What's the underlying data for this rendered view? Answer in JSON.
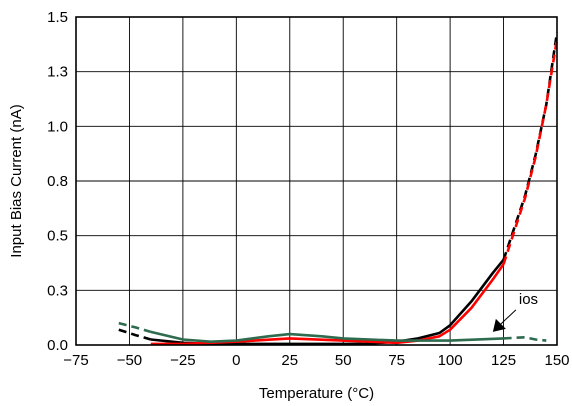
{
  "chart_data": {
    "type": "line",
    "title": "",
    "xlabel": "Temperature (°C)",
    "ylabel": "Input Bias Current (nA)",
    "xlim": [
      -75,
      150
    ],
    "ylim": [
      0,
      1.5
    ],
    "xticks": [
      -75,
      -50,
      -25,
      0,
      25,
      50,
      75,
      100,
      125,
      150
    ],
    "xtick_labels": [
      "−75",
      "−50",
      "−25",
      "0",
      "25",
      "50",
      "75",
      "100",
      "125",
      "150"
    ],
    "yticks": [
      0,
      0.25,
      0.5,
      0.75,
      1.0,
      1.25,
      1.5
    ],
    "ytick_labels": [
      "0.0",
      "0.3",
      "0.5",
      "0.8",
      "1.0",
      "1.3",
      "1.5"
    ],
    "grid": true,
    "legend": "none",
    "annotation": {
      "text": "ios",
      "arrow_to": [
        120,
        0.06
      ]
    },
    "series": [
      {
        "color": "#000000",
        "style": "dashed",
        "x": [
          -55,
          -47,
          -40
        ],
        "y": [
          0.07,
          0.045,
          0.025
        ]
      },
      {
        "color": "#000000",
        "style": "solid",
        "x": [
          -40,
          -25,
          -12,
          0,
          25,
          50,
          60,
          75,
          85,
          95,
          100,
          110,
          120,
          125
        ],
        "y": [
          0.025,
          0.01,
          0.005,
          0.005,
          0.005,
          0.005,
          0.005,
          0.015,
          0.03,
          0.055,
          0.09,
          0.2,
          0.33,
          0.39
        ]
      },
      {
        "color": "#000000",
        "style": "dashed",
        "x": [
          125,
          135,
          140,
          145,
          150
        ],
        "y": [
          0.39,
          0.68,
          0.87,
          1.1,
          1.43
        ]
      },
      {
        "color": "#ff0000",
        "style": "solid",
        "x": [
          -40,
          -25,
          -12,
          0,
          25,
          50,
          75,
          85,
          95,
          100,
          110,
          120,
          125
        ],
        "y": [
          0.005,
          0.005,
          0.01,
          0.015,
          0.03,
          0.02,
          0.01,
          0.02,
          0.04,
          0.07,
          0.17,
          0.3,
          0.37
        ]
      },
      {
        "color": "#ff0000",
        "style": "dashed",
        "x": [
          125,
          135,
          140,
          145,
          150
        ],
        "y": [
          0.37,
          0.67,
          0.86,
          1.1,
          1.4
        ]
      },
      {
        "color": "#2e6b4f",
        "style": "dashed",
        "x": [
          -55,
          -47,
          -40
        ],
        "y": [
          0.1,
          0.08,
          0.06
        ]
      },
      {
        "color": "#2e6b4f",
        "style": "solid",
        "x": [
          -40,
          -25,
          -12,
          0,
          15,
          25,
          40,
          50,
          75,
          100,
          125
        ],
        "y": [
          0.06,
          0.025,
          0.015,
          0.02,
          0.04,
          0.05,
          0.04,
          0.03,
          0.02,
          0.02,
          0.03
        ]
      },
      {
        "color": "#2e6b4f",
        "style": "dashed",
        "x": [
          125,
          135,
          140,
          145
        ],
        "y": [
          0.03,
          0.035,
          0.025,
          0.02
        ]
      }
    ]
  }
}
